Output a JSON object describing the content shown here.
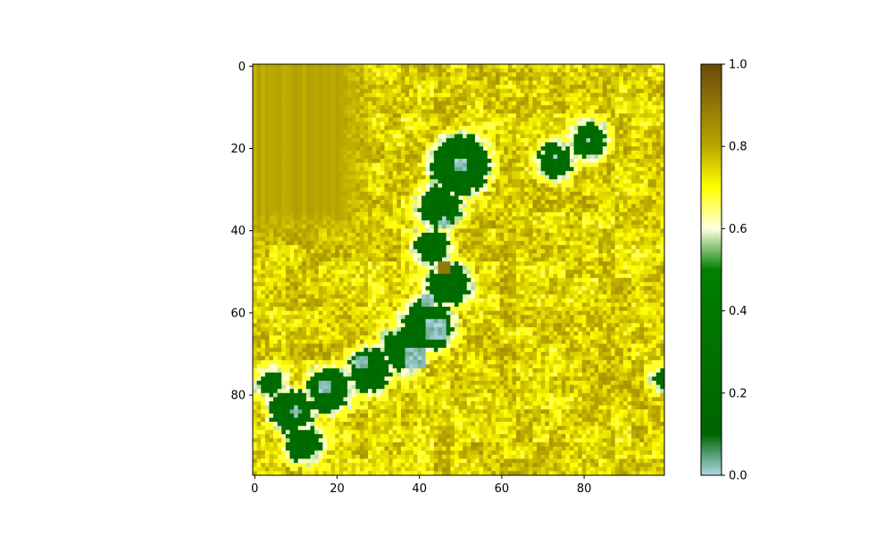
{
  "chart_data": {
    "type": "heatmap",
    "title": "",
    "xlabel": "",
    "ylabel": "",
    "grid_size": [
      100,
      100
    ],
    "x_ticks": [
      0,
      20,
      40,
      60,
      80
    ],
    "y_ticks": [
      0,
      20,
      40,
      60,
      80
    ],
    "xlim": [
      -0.5,
      99.5
    ],
    "ylim": [
      99.5,
      -0.5
    ],
    "grid": false,
    "colorbar": {
      "range": [
        0.0,
        1.0
      ],
      "ticks": [
        0.0,
        0.2,
        0.4,
        0.6,
        0.8,
        1.0
      ],
      "tick_labels": [
        "0.0",
        "0.2",
        "0.4",
        "0.6",
        "0.8",
        "1.0"
      ],
      "stops": [
        {
          "v": 0.0,
          "color": "#add8e6"
        },
        {
          "v": 0.1,
          "color": "#006400"
        },
        {
          "v": 0.5,
          "color": "#008000"
        },
        {
          "v": 0.6,
          "color": "#ffffe0"
        },
        {
          "v": 0.7,
          "color": "#ffff00"
        },
        {
          "v": 0.8,
          "color": "#b8a600"
        },
        {
          "v": 1.0,
          "color": "#6b4a0b"
        }
      ]
    },
    "regions": {
      "background_level": 0.75,
      "upper_left_plateau_level": 0.8,
      "shore_level": 0.6,
      "vegetation_level": 0.2,
      "water_level": 0.0,
      "vegetation_blobs": [
        {
          "x": 50,
          "y": 24,
          "r": 7
        },
        {
          "x": 45,
          "y": 34,
          "r": 5
        },
        {
          "x": 43,
          "y": 44,
          "r": 4
        },
        {
          "x": 47,
          "y": 53,
          "r": 5
        },
        {
          "x": 42,
          "y": 63,
          "r": 6
        },
        {
          "x": 36,
          "y": 69,
          "r": 5
        },
        {
          "x": 28,
          "y": 74,
          "r": 5
        },
        {
          "x": 18,
          "y": 79,
          "r": 5
        },
        {
          "x": 9,
          "y": 84,
          "r": 5
        },
        {
          "x": 12,
          "y": 92,
          "r": 4
        },
        {
          "x": 4,
          "y": 77,
          "r": 3
        },
        {
          "x": 73,
          "y": 23,
          "r": 4
        },
        {
          "x": 81,
          "y": 18,
          "r": 4
        },
        {
          "x": 99,
          "y": 76,
          "r": 2
        }
      ],
      "water_blobs": [
        {
          "x": 44,
          "y": 64,
          "r": 3
        },
        {
          "x": 39,
          "y": 71,
          "r": 3
        },
        {
          "x": 42,
          "y": 57,
          "r": 2
        },
        {
          "x": 26,
          "y": 72,
          "r": 1.5
        },
        {
          "x": 17,
          "y": 78,
          "r": 1.5
        },
        {
          "x": 10,
          "y": 84,
          "r": 1.2
        },
        {
          "x": 50,
          "y": 24,
          "r": 1.5
        },
        {
          "x": 46,
          "y": 38,
          "r": 1.2
        },
        {
          "x": 73,
          "y": 22,
          "r": 1
        },
        {
          "x": 81,
          "y": 18,
          "r": 1
        }
      ],
      "high_spot": {
        "x": 46,
        "y": 49,
        "level": 0.9
      }
    }
  }
}
